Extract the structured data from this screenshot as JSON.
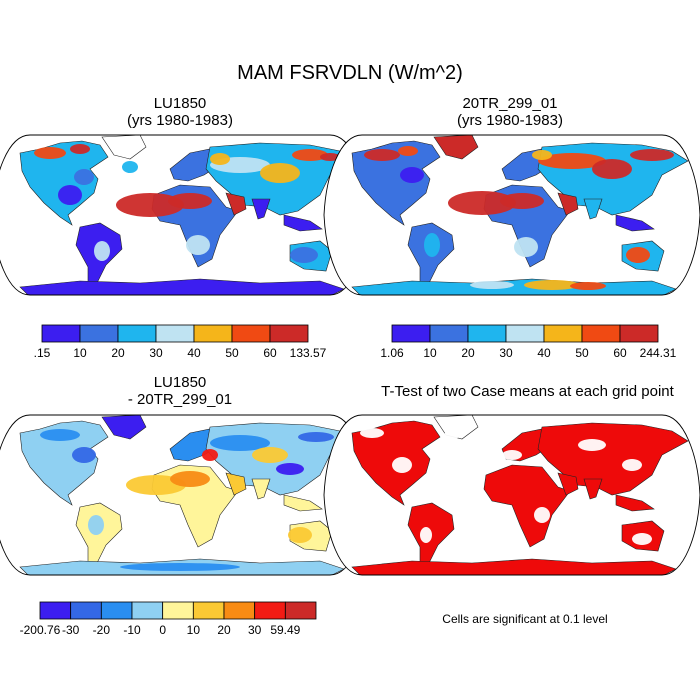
{
  "chart_data": {
    "type": "map",
    "title": "MAM FSRVDLN (W/m^2)",
    "panels": [
      {
        "id": "lu1850",
        "title_line1": "LU1850",
        "title_line2": "(yrs 1980-1983)",
        "colorbar": {
          "colors": [
            "#3c1ef0",
            "#3b72e0",
            "#1fb5ee",
            "#bfe3f2",
            "#f5b51a",
            "#f04a13",
            "#cc2a28"
          ],
          "labels": [
            ".15",
            "10",
            "20",
            "30",
            "40",
            "50",
            "60",
            "133.57"
          ]
        }
      },
      {
        "id": "20tr",
        "title_line1": "20TR_299_01",
        "title_line2": "(yrs 1980-1983)",
        "colorbar": {
          "colors": [
            "#3c1ef0",
            "#3b72e0",
            "#1fb5ee",
            "#bfe3f2",
            "#f5b51a",
            "#f04a13",
            "#cc2a28"
          ],
          "labels": [
            "1.06",
            "10",
            "20",
            "30",
            "40",
            "50",
            "60",
            "244.31"
          ]
        }
      },
      {
        "id": "diff",
        "title_line1": "LU1850",
        "title_line2": "- 20TR_299_01",
        "colorbar": {
          "colors": [
            "#3c1ef0",
            "#3468e6",
            "#2a8ef0",
            "#8fd0f2",
            "#fff59a",
            "#fbc934",
            "#f88b14",
            "#f21b14",
            "#cc2a28"
          ],
          "labels": [
            "-200.76",
            "-30",
            "-20",
            "-10",
            "0",
            "10",
            "20",
            "30",
            "59.49"
          ]
        }
      },
      {
        "id": "ttest",
        "title_line1": "T-Test of two Case means at each grid point",
        "significance_color": "#ee0a0a"
      }
    ],
    "note": "Cells are significant at 0.1 level"
  }
}
